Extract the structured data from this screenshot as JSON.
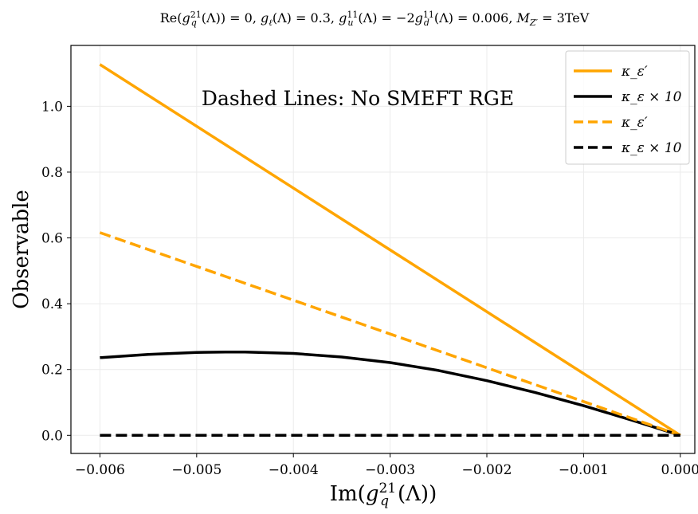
{
  "chart_data": {
    "type": "line",
    "title": "Re(g_q^21(Λ)) = 0,  g_ℓ(Λ) = 0.3,  g_u^11(Λ) = −2g_d^11(Λ) = 0.006,  M_Z′ = 3TeV",
    "xlabel": "Im(g_q^21(Λ))",
    "ylabel": "Observable",
    "annotation": "Dashed Lines: No SMEFT RGE",
    "xlim": [
      -0.0063,
      0.00015
    ],
    "ylim": [
      -0.055,
      1.185
    ],
    "x_ticks": [
      -0.006,
      -0.005,
      -0.004,
      -0.003,
      -0.002,
      -0.001,
      0.0
    ],
    "x_tick_labels": [
      "−0.006",
      "−0.005",
      "−0.004",
      "−0.003",
      "−0.002",
      "−0.001",
      "0.000"
    ],
    "y_ticks": [
      0.0,
      0.2,
      0.4,
      0.6,
      0.8,
      1.0
    ],
    "y_tick_labels": [
      "0.0",
      "0.2",
      "0.4",
      "0.6",
      "0.8",
      "1.0"
    ],
    "grid": true,
    "legend_position": "top-right",
    "series": [
      {
        "name": "κ_ε′",
        "color": "#FFA500",
        "style": "solid",
        "x": [
          -0.006,
          0.0
        ],
        "y": [
          1.127,
          0.0
        ]
      },
      {
        "name": "κ_ε × 10",
        "color": "#000000",
        "style": "solid",
        "x": [
          -0.006,
          -0.0055,
          -0.005,
          -0.0047,
          -0.0045,
          -0.004,
          -0.0035,
          -0.003,
          -0.0025,
          -0.002,
          -0.0015,
          -0.001,
          -0.0005,
          0.0
        ],
        "y": [
          0.236,
          0.246,
          0.252,
          0.253,
          0.253,
          0.249,
          0.238,
          0.221,
          0.197,
          0.166,
          0.13,
          0.09,
          0.046,
          0.0
        ]
      },
      {
        "name": "κ_ε′",
        "color": "#FFA500",
        "style": "dashed",
        "x": [
          -0.006,
          0.0
        ],
        "y": [
          0.616,
          0.0
        ]
      },
      {
        "name": "κ_ε × 10",
        "color": "#000000",
        "style": "dashed",
        "x": [
          -0.006,
          0.0
        ],
        "y": [
          0.0,
          0.0
        ]
      }
    ]
  }
}
